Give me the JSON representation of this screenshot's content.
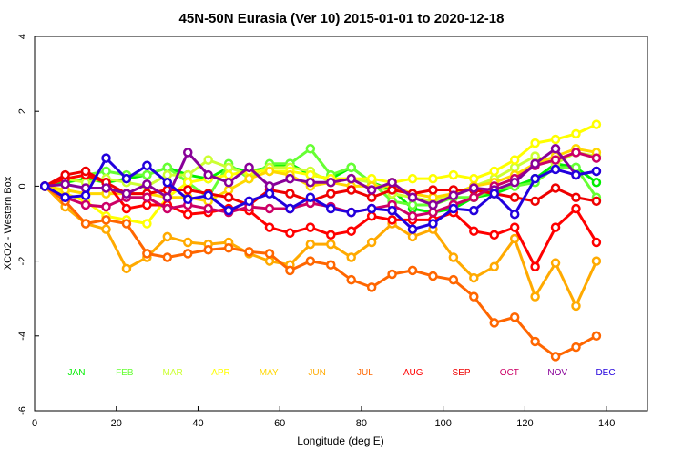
{
  "chart_data": {
    "type": "line",
    "title": "45N-50N Eurasia (Ver 10)   2015-01-01 to 2020-12-18",
    "xlabel": "Longitude (deg E)",
    "ylabel": "XCO2 - Western Box",
    "xlim": [
      0,
      150
    ],
    "ylim": [
      -6,
      4
    ],
    "xticks": [
      0,
      20,
      40,
      60,
      80,
      100,
      120,
      140
    ],
    "yticks": [
      -6,
      -4,
      -2,
      0,
      2,
      4
    ],
    "grid": false,
    "legend_position": "inside-bottom",
    "legend_labels": [
      "JAN",
      "FEB",
      "MAR",
      "APR",
      "MAY",
      "JUN",
      "JUL",
      "AUG",
      "SEP",
      "OCT",
      "NOV",
      "DEC"
    ],
    "x": [
      2.5,
      7.5,
      12.5,
      17.5,
      22.5,
      27.5,
      32.5,
      37.5,
      42.5,
      47.5,
      52.5,
      57.5,
      62.5,
      67.5,
      72.5,
      77.5,
      82.5,
      87.5,
      92.5,
      97.5,
      102.5,
      107.5,
      112.5,
      117.5,
      122.5,
      127.5,
      132.5,
      137.5
    ],
    "series": [
      {
        "name": "JAN",
        "color": "#00ee00",
        "values": [
          0,
          0.1,
          0.2,
          0.1,
          0.2,
          0.3,
          0.5,
          0.3,
          0.2,
          0.5,
          0.4,
          0.5,
          0.6,
          0.3,
          0.2,
          0.5,
          0.1,
          -0.1,
          -0.6,
          -0.7,
          -0.6,
          -0.3,
          -0.2,
          0.0,
          0.2,
          0.6,
          0.5,
          0.1
        ]
      },
      {
        "name": "FEB",
        "color": "#66ff33",
        "values": [
          0,
          0.2,
          0.3,
          0.4,
          0.3,
          0.3,
          0.5,
          0.1,
          -0.3,
          0.6,
          0.2,
          0.6,
          0.6,
          1.0,
          0.3,
          0.5,
          0.1,
          -0.4,
          -0.5,
          -0.5,
          -0.3,
          -0.3,
          -0.1,
          0.0,
          0.1,
          0.5,
          0.5,
          -0.3
        ]
      },
      {
        "name": "MAR",
        "color": "#ccff33",
        "values": [
          0,
          0.2,
          0.1,
          0.2,
          0.1,
          0.0,
          0.3,
          0.3,
          0.7,
          0.5,
          0.3,
          0.5,
          0.5,
          0.4,
          0.1,
          0.2,
          0.1,
          -0.2,
          -0.3,
          -0.4,
          -0.2,
          0.0,
          0.2,
          0.5,
          0.8,
          0.6,
          0.9,
          0.8
        ]
      },
      {
        "name": "APR",
        "color": "#ffff00",
        "values": [
          0,
          -0.2,
          -0.4,
          -0.8,
          -0.9,
          -1.0,
          -0.3,
          0.1,
          0.2,
          0.3,
          0.4,
          0.4,
          0.4,
          0.3,
          0.2,
          0.2,
          0.2,
          0.1,
          0.2,
          0.2,
          0.3,
          0.2,
          0.4,
          0.7,
          1.15,
          1.25,
          1.4,
          1.65
        ]
      },
      {
        "name": "MAY",
        "color": "#ffd700",
        "values": [
          0,
          -0.1,
          -0.2,
          -0.2,
          -0.2,
          -0.2,
          -0.3,
          -0.3,
          -0.4,
          -0.1,
          0.2,
          0.4,
          0.3,
          0.0,
          0.1,
          0.0,
          0.0,
          0.0,
          -0.2,
          -0.3,
          -0.2,
          0.0,
          0.1,
          0.3,
          0.6,
          0.8,
          1.0,
          0.9
        ]
      },
      {
        "name": "JUN",
        "color": "#ffaa00",
        "values": [
          0,
          -0.55,
          -1.0,
          -1.15,
          -2.2,
          -1.9,
          -1.35,
          -1.5,
          -1.55,
          -1.5,
          -1.8,
          -2.0,
          -2.1,
          -1.55,
          -1.55,
          -1.9,
          -1.5,
          -1.0,
          -1.35,
          -1.15,
          -1.9,
          -2.45,
          -2.15,
          -1.4,
          -2.95,
          -2.05,
          -3.2,
          -2.0
        ]
      },
      {
        "name": "JUL",
        "color": "#ff6600",
        "values": [
          0,
          -0.4,
          -1.0,
          -0.9,
          -1.0,
          -1.8,
          -1.9,
          -1.8,
          -1.7,
          -1.65,
          -1.75,
          -1.8,
          -2.25,
          -2.0,
          -2.1,
          -2.5,
          -2.7,
          -2.35,
          -2.25,
          -2.4,
          -2.5,
          -2.95,
          -3.65,
          -3.5,
          -4.15,
          -4.55,
          -4.3,
          -4.0
        ]
      },
      {
        "name": "AUG",
        "color": "#ff0000",
        "values": [
          0,
          0.2,
          0.3,
          0.1,
          -0.6,
          -0.5,
          -0.5,
          -0.75,
          -0.7,
          -0.6,
          -0.65,
          -1.1,
          -1.25,
          -1.1,
          -1.3,
          -1.2,
          -0.8,
          -0.9,
          -0.9,
          -0.9,
          -0.7,
          -1.2,
          -1.3,
          -1.1,
          -2.15,
          -1.1,
          -0.6,
          -1.5
        ]
      },
      {
        "name": "SEP",
        "color": "#ee0000",
        "values": [
          0,
          0.3,
          0.4,
          0.1,
          -0.2,
          -0.2,
          -0.1,
          -0.1,
          -0.2,
          -0.3,
          -0.5,
          -0.1,
          -0.2,
          -0.4,
          -0.2,
          -0.1,
          -0.3,
          -0.1,
          -0.2,
          -0.1,
          -0.1,
          -0.1,
          -0.2,
          -0.3,
          -0.4,
          -0.05,
          -0.3,
          -0.4
        ]
      },
      {
        "name": "OCT",
        "color": "#cc0066",
        "values": [
          0,
          -0.3,
          -0.5,
          -0.55,
          -0.3,
          -0.3,
          -0.6,
          -0.5,
          -0.6,
          -0.7,
          -0.55,
          -0.6,
          -0.6,
          -0.45,
          -0.55,
          -0.7,
          -0.6,
          -0.5,
          -0.8,
          -0.7,
          -0.5,
          -0.3,
          0.0,
          0.2,
          0.55,
          0.7,
          0.9,
          0.75
        ]
      },
      {
        "name": "NOV",
        "color": "#880099",
        "values": [
          0,
          0.05,
          -0.05,
          -0.05,
          -0.2,
          0.05,
          -0.3,
          0.9,
          0.3,
          0.1,
          0.5,
          0.0,
          0.2,
          0.1,
          0.1,
          0.2,
          -0.1,
          0.1,
          -0.3,
          -0.5,
          -0.25,
          -0.05,
          -0.1,
          0.1,
          0.6,
          1.0,
          0.3,
          0.4
        ]
      },
      {
        "name": "DEC",
        "color": "#2200dd",
        "values": [
          0,
          -0.3,
          -0.25,
          0.75,
          0.2,
          0.55,
          0.1,
          -0.35,
          -0.25,
          -0.65,
          -0.4,
          -0.2,
          -0.6,
          -0.3,
          -0.6,
          -0.7,
          -0.6,
          -0.65,
          -1.15,
          -1.0,
          -0.6,
          -0.65,
          -0.2,
          -0.75,
          0.2,
          0.45,
          0.3,
          0.4
        ]
      }
    ]
  }
}
